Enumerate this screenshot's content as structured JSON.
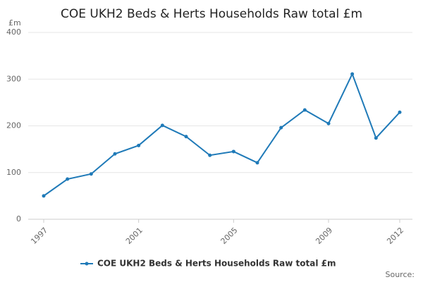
{
  "chart_data": {
    "type": "line",
    "title": "COE UKH2 Beds & Herts Households Raw total £m",
    "y_label": "£m",
    "source": "Source:",
    "x": [
      1997,
      1998,
      1999,
      2000,
      2001,
      2002,
      2003,
      2004,
      2005,
      2006,
      2007,
      2008,
      2009,
      2010,
      2011,
      2012
    ],
    "series": [
      {
        "name": "COE UKH2 Beds & Herts Households Raw total £m",
        "color": "#1f7ab8",
        "values": [
          50,
          86,
          97,
          140,
          158,
          201,
          177,
          137,
          145,
          121,
          196,
          234,
          205,
          311,
          174,
          229
        ]
      }
    ],
    "xlim": [
      1997,
      2012
    ],
    "xticks": [
      1997,
      2001,
      2005,
      2009,
      2012
    ],
    "ylim": [
      0,
      400
    ],
    "yticks": [
      0,
      100,
      200,
      300,
      400
    ],
    "grid": true
  }
}
